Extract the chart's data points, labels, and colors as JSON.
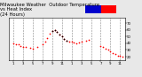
{
  "title": "Milwaukee Weather  Outdoor Temperature\nvs Heat Index\n(24 Hours)",
  "title_fontsize": 3.8,
  "bg_color": "#e8e8e8",
  "plot_bg": "#ffffff",
  "grid_color": "#888888",
  "dot_color_temp": "#ff0000",
  "dot_color_hi": "#000000",
  "x_label_fontsize": 2.8,
  "y_tick_fontsize": 2.8,
  "y_ticks": [
    20,
    30,
    40,
    50,
    60,
    70
  ],
  "ylim": [
    15,
    78
  ],
  "xlim": [
    0,
    24
  ],
  "legend_blue": "#0000cc",
  "legend_red": "#ff0000",
  "temp_x": [
    1.0,
    1.5,
    2.0,
    2.5,
    3.0,
    3.5,
    4.5,
    5.0,
    6.0,
    7.0,
    7.5,
    8.0,
    8.5,
    9.0,
    9.5,
    10.0,
    10.5,
    11.0,
    11.5,
    12.0,
    12.5,
    13.0,
    13.5,
    14.0,
    14.5,
    15.0,
    16.0,
    16.5,
    19.0,
    19.5,
    20.0,
    20.5,
    21.0,
    21.5,
    22.0,
    22.5,
    23.0,
    23.5
  ],
  "temp_y": [
    40,
    39,
    38,
    36,
    35,
    34,
    33,
    32,
    35,
    38,
    42,
    48,
    54,
    58,
    60,
    57,
    53,
    50,
    47,
    44,
    43,
    42,
    41,
    40,
    41,
    42,
    44,
    45,
    36,
    34,
    32,
    30,
    28,
    26,
    24,
    22,
    21,
    20
  ],
  "hi_x": [
    9.0,
    9.5,
    10.0,
    10.5,
    11.0,
    11.5,
    12.0
  ],
  "hi_y": [
    58,
    60,
    57,
    53,
    50,
    47,
    44
  ],
  "x_ticks": [
    1,
    3,
    5,
    7,
    9,
    11,
    13,
    15,
    17,
    19,
    21,
    23
  ],
  "x_labels": [
    "1",
    "3",
    "5",
    "7",
    "9",
    "11",
    "1",
    "3",
    "5",
    "7",
    "9",
    "11"
  ]
}
